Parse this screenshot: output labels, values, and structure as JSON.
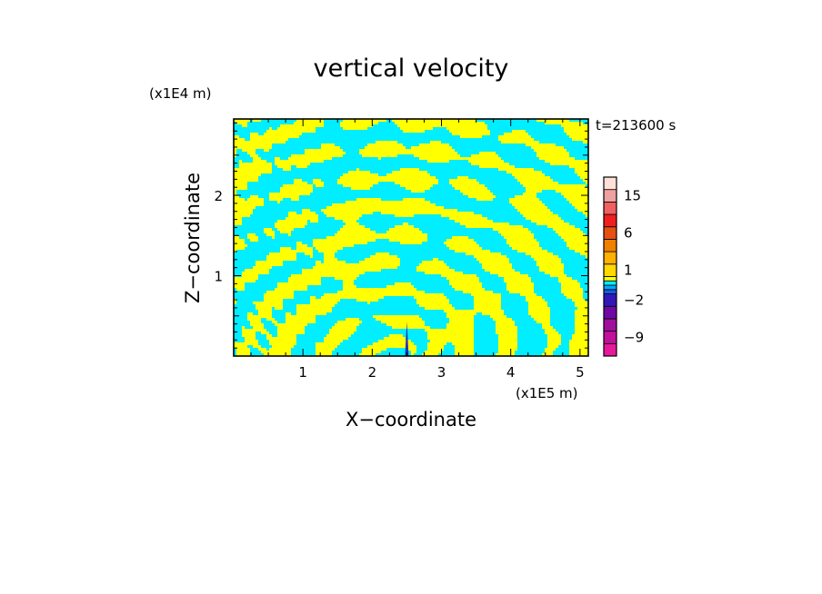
{
  "chart_data": {
    "type": "heatmap",
    "title": "vertical velocity",
    "xlabel": "X−coordinate",
    "ylabel": "Z−coordinate",
    "x_unit": "(x1E5 m)",
    "y_unit": "(x1E4 m)",
    "time_label": "t=213600 s",
    "xlim": [
      0.0,
      5.12
    ],
    "ylim": [
      0.0,
      2.95
    ],
    "x_ticks": [
      {
        "value": 1,
        "label": "1"
      },
      {
        "value": 2,
        "label": "2"
      },
      {
        "value": 3,
        "label": "3"
      },
      {
        "value": 4,
        "label": "4"
      },
      {
        "value": 5,
        "label": "5"
      }
    ],
    "y_ticks": [
      {
        "value": 1,
        "label": "1"
      },
      {
        "value": 2,
        "label": "2"
      }
    ],
    "grid": false,
    "field_colors": {
      "upward": "#ffff00",
      "downward": "#00eeff",
      "strong_downward": "#2030c0"
    },
    "colorbar": {
      "levels": [
        -12,
        -9,
        -6,
        -4,
        -2,
        -1,
        -0.5,
        0,
        0.5,
        1,
        2,
        4,
        6,
        9,
        12,
        15,
        20
      ],
      "colors": [
        "#e8189c",
        "#c0109c",
        "#a0109c",
        "#7008a8",
        "#3018b8",
        "#1858f0",
        "#00a8ff",
        "#00eeff",
        "#ffff00",
        "#ffd800",
        "#ffb000",
        "#f08000",
        "#e85010",
        "#f02020",
        "#f06060",
        "#f0a0a0",
        "#ffe0d8"
      ],
      "tick_labels": [
        {
          "value": -9,
          "label": "−9"
        },
        {
          "value": -2,
          "label": "−2"
        },
        {
          "value": 1,
          "label": "1"
        },
        {
          "value": 6,
          "label": "6"
        },
        {
          "value": 15,
          "label": "15"
        }
      ]
    }
  }
}
